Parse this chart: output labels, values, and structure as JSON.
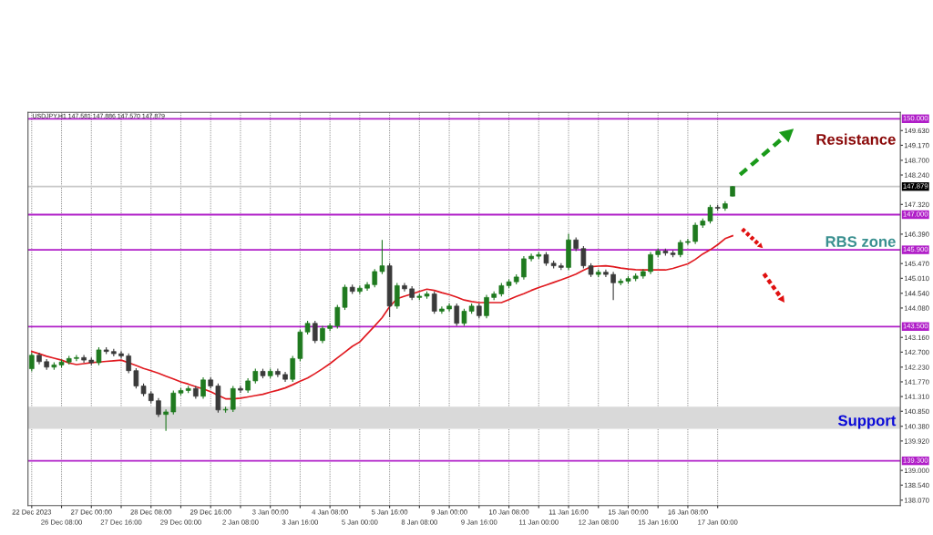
{
  "chart_data": {
    "type": "candlestick",
    "title": "USDJPY,H1 147.581 147.886 147.570 147.879",
    "categories": [
      "22 Dec 2023",
      null,
      null,
      null,
      "26 Dec 08:00",
      null,
      null,
      null,
      "27 Dec 00:00",
      null,
      null,
      null,
      "27 Dec 16:00",
      null,
      null,
      null,
      "28 Dec 08:00",
      null,
      null,
      null,
      "29 Dec 00:00",
      null,
      null,
      null,
      "29 Dec 16:00",
      null,
      null,
      null,
      "2 Jan 08:00",
      null,
      null,
      null,
      "3 Jan 00:00",
      null,
      null,
      null,
      "3 Jan 16:00",
      null,
      null,
      null,
      "4 Jan 08:00",
      null,
      null,
      null,
      "5 Jan 00:00",
      null,
      null,
      null,
      "5 Jan 16:00",
      null,
      null,
      null,
      "8 Jan 08:00",
      null,
      null,
      null,
      "9 Jan 00:00",
      null,
      null,
      null,
      "9 Jan 16:00",
      null,
      null,
      null,
      "10 Jan 08:00",
      null,
      null,
      null,
      "11 Jan 00:00",
      null,
      null,
      null,
      "11 Jan 16:00",
      null,
      null,
      null,
      "12 Jan 08:00",
      null,
      null,
      null,
      "15 Jan 00:00",
      null,
      null,
      null,
      "15 Jan 16:00",
      null,
      null,
      null,
      "16 Jan 08:00",
      null,
      null,
      null,
      "17 Jan 00:00",
      null,
      null,
      null,
      null,
      null,
      null,
      null,
      null,
      null,
      null,
      null,
      null,
      null,
      null,
      null,
      null,
      null,
      null,
      null,
      null,
      null,
      null,
      null,
      null
    ],
    "ohlc": [
      [
        142.18,
        142.68,
        142.1,
        142.6
      ],
      [
        142.6,
        142.68,
        142.32,
        142.4
      ],
      [
        142.4,
        142.48,
        142.15,
        142.23
      ],
      [
        142.23,
        142.38,
        142.15,
        142.3
      ],
      [
        142.3,
        142.47,
        142.22,
        142.39
      ],
      [
        142.39,
        142.58,
        142.31,
        142.5
      ],
      [
        142.5,
        142.61,
        142.42,
        142.53
      ],
      [
        142.53,
        142.61,
        142.37,
        142.45
      ],
      [
        142.45,
        142.53,
        142.29,
        142.37
      ],
      [
        142.37,
        142.85,
        142.29,
        142.77
      ],
      [
        142.77,
        142.85,
        142.64,
        142.72
      ],
      [
        142.72,
        142.8,
        142.57,
        142.65
      ],
      [
        142.65,
        142.73,
        142.5,
        142.58
      ],
      [
        142.58,
        142.66,
        142.04,
        142.12
      ],
      [
        142.12,
        142.2,
        141.56,
        141.64
      ],
      [
        141.64,
        141.72,
        141.32,
        141.4
      ],
      [
        141.4,
        141.48,
        141.1,
        141.18
      ],
      [
        141.18,
        141.26,
        140.67,
        140.75
      ],
      [
        140.75,
        140.91,
        140.24,
        140.83
      ],
      [
        140.83,
        141.5,
        140.75,
        141.42
      ],
      [
        141.42,
        141.58,
        141.34,
        141.5
      ],
      [
        141.5,
        141.64,
        141.42,
        141.56
      ],
      [
        141.56,
        141.64,
        141.24,
        141.32
      ],
      [
        141.32,
        141.91,
        141.24,
        141.83
      ],
      [
        141.83,
        141.91,
        141.56,
        141.64
      ],
      [
        141.64,
        141.72,
        140.81,
        140.89
      ],
      [
        140.89,
        140.99,
        140.81,
        140.91
      ],
      [
        140.91,
        141.64,
        140.83,
        141.56
      ],
      [
        141.56,
        141.64,
        141.43,
        141.51
      ],
      [
        141.51,
        141.88,
        141.43,
        141.8
      ],
      [
        141.8,
        142.18,
        141.72,
        142.1
      ],
      [
        142.1,
        142.18,
        141.88,
        141.96
      ],
      [
        141.96,
        142.18,
        141.88,
        142.1
      ],
      [
        142.1,
        142.18,
        141.92,
        142.0
      ],
      [
        142.0,
        142.08,
        141.77,
        141.85
      ],
      [
        141.85,
        142.58,
        141.77,
        142.5
      ],
      [
        142.5,
        143.41,
        142.42,
        143.33
      ],
      [
        143.33,
        143.68,
        143.25,
        143.6
      ],
      [
        143.6,
        143.68,
        142.98,
        143.06
      ],
      [
        143.06,
        143.52,
        142.98,
        143.44
      ],
      [
        143.44,
        143.6,
        143.36,
        143.52
      ],
      [
        143.52,
        144.18,
        143.44,
        144.1
      ],
      [
        144.1,
        144.81,
        144.02,
        144.73
      ],
      [
        144.73,
        144.81,
        144.52,
        144.6
      ],
      [
        144.6,
        144.78,
        144.52,
        144.7
      ],
      [
        144.7,
        144.89,
        144.62,
        144.81
      ],
      [
        144.81,
        145.3,
        144.73,
        145.22
      ],
      [
        145.22,
        146.21,
        145.14,
        145.4
      ],
      [
        145.4,
        145.48,
        143.79,
        144.14
      ],
      [
        144.14,
        144.86,
        144.06,
        144.78
      ],
      [
        144.78,
        144.86,
        144.6,
        144.68
      ],
      [
        144.68,
        144.76,
        144.33,
        144.41
      ],
      [
        144.41,
        144.53,
        144.33,
        144.45
      ],
      [
        144.45,
        144.6,
        144.37,
        144.52
      ],
      [
        144.52,
        144.6,
        143.9,
        143.98
      ],
      [
        143.98,
        144.13,
        143.9,
        144.05
      ],
      [
        144.05,
        144.22,
        143.97,
        144.14
      ],
      [
        144.14,
        144.22,
        143.52,
        143.6
      ],
      [
        143.6,
        144.06,
        143.52,
        143.98
      ],
      [
        143.98,
        144.22,
        143.9,
        144.14
      ],
      [
        144.14,
        144.22,
        143.76,
        143.84
      ],
      [
        143.84,
        144.49,
        143.76,
        144.41
      ],
      [
        144.41,
        144.6,
        144.33,
        144.52
      ],
      [
        144.52,
        144.86,
        144.44,
        144.78
      ],
      [
        144.78,
        144.98,
        144.7,
        144.9
      ],
      [
        144.9,
        145.13,
        144.82,
        145.05
      ],
      [
        145.05,
        145.7,
        144.97,
        145.62
      ],
      [
        145.62,
        145.78,
        145.54,
        145.7
      ],
      [
        145.7,
        145.83,
        145.62,
        145.75
      ],
      [
        145.75,
        145.83,
        145.4,
        145.48
      ],
      [
        145.48,
        145.56,
        145.32,
        145.4
      ],
      [
        145.4,
        145.48,
        145.27,
        145.35
      ],
      [
        145.35,
        146.4,
        145.27,
        146.21
      ],
      [
        146.21,
        146.29,
        145.86,
        145.94
      ],
      [
        145.94,
        146.02,
        145.32,
        145.4
      ],
      [
        145.4,
        145.48,
        145.05,
        145.13
      ],
      [
        145.13,
        145.28,
        145.05,
        145.2
      ],
      [
        145.2,
        145.28,
        145.05,
        145.13
      ],
      [
        145.13,
        145.21,
        144.33,
        144.87
      ],
      [
        144.87,
        145.0,
        144.79,
        144.92
      ],
      [
        144.92,
        145.08,
        144.84,
        145.0
      ],
      [
        145.0,
        145.16,
        144.92,
        145.08
      ],
      [
        145.08,
        145.3,
        145.0,
        145.22
      ],
      [
        145.22,
        145.83,
        145.14,
        145.75
      ],
      [
        145.75,
        145.94,
        145.67,
        145.86
      ],
      [
        145.86,
        145.94,
        145.72,
        145.8
      ],
      [
        145.8,
        145.88,
        145.67,
        145.75
      ],
      [
        145.75,
        146.21,
        145.67,
        146.13
      ],
      [
        146.13,
        146.24,
        146.05,
        146.16
      ],
      [
        146.16,
        146.75,
        146.08,
        146.67
      ],
      [
        146.67,
        146.88,
        146.59,
        146.8
      ],
      [
        146.8,
        147.31,
        146.72,
        147.23
      ],
      [
        147.23,
        147.31,
        147.12,
        147.2
      ],
      [
        147.2,
        147.42,
        147.12,
        147.34
      ],
      [
        147.58,
        147.89,
        147.57,
        147.88
      ],
      null,
      null,
      null,
      null,
      null,
      null,
      null,
      null,
      null,
      null,
      null,
      null,
      null,
      null,
      null,
      null,
      null,
      null,
      null,
      null,
      null,
      null
    ],
    "series": [
      {
        "type": "line",
        "color": "#e0191f",
        "values": [
          142.72,
          142.65,
          142.57,
          142.51,
          142.45,
          142.36,
          142.31,
          142.34,
          142.37,
          142.39,
          142.41,
          142.43,
          142.45,
          142.37,
          142.28,
          142.19,
          142.12,
          142.04,
          141.95,
          141.86,
          141.77,
          141.7,
          141.62,
          141.55,
          141.46,
          141.35,
          141.24,
          141.24,
          141.26,
          141.3,
          141.34,
          141.38,
          141.45,
          141.51,
          141.58,
          141.68,
          141.79,
          141.89,
          142.03,
          142.18,
          142.34,
          142.52,
          142.7,
          142.88,
          143.02,
          143.27,
          143.52,
          143.78,
          144.12,
          144.37,
          144.45,
          144.52,
          144.6,
          144.67,
          144.63,
          144.56,
          144.5,
          144.42,
          144.33,
          144.28,
          144.25,
          144.25,
          144.25,
          144.25,
          144.34,
          144.44,
          144.53,
          144.63,
          144.72,
          144.8,
          144.88,
          144.96,
          145.05,
          145.14,
          145.26,
          145.37,
          145.39,
          145.4,
          145.37,
          145.33,
          145.3,
          145.28,
          145.27,
          145.27,
          145.27,
          145.27,
          145.32,
          145.39,
          145.46,
          145.6,
          145.77,
          145.9,
          146.06,
          146.25,
          146.34,
          null,
          null,
          null,
          null,
          null,
          null,
          null,
          null,
          null,
          null,
          null,
          null,
          null,
          null,
          null,
          null,
          null,
          null,
          null,
          null,
          null,
          null
        ]
      }
    ],
    "ylim": [
      137.9,
      150.2
    ],
    "yticks": [
      {
        "value": 138.07,
        "label": "138.070"
      },
      {
        "value": 138.54,
        "label": "138.540"
      },
      {
        "value": 139.0,
        "label": "139.000"
      },
      {
        "value": 139.92,
        "label": "139.920"
      },
      {
        "value": 140.38,
        "label": "140.380"
      },
      {
        "value": 140.85,
        "label": "140.850"
      },
      {
        "value": 141.31,
        "label": "141.310"
      },
      {
        "value": 141.77,
        "label": "141.770"
      },
      {
        "value": 142.23,
        "label": "142.230"
      },
      {
        "value": 142.7,
        "label": "142.700"
      },
      {
        "value": 143.16,
        "label": "143.160"
      },
      {
        "value": 144.08,
        "label": "144.080"
      },
      {
        "value": 144.54,
        "label": "144.540"
      },
      {
        "value": 145.01,
        "label": "145.010"
      },
      {
        "value": 145.47,
        "label": "145.470"
      },
      {
        "value": 146.39,
        "label": "146.390"
      },
      {
        "value": 147.32,
        "label": "147.320"
      },
      {
        "value": 148.24,
        "label": "148.240"
      },
      {
        "value": 148.7,
        "label": "148.700"
      },
      {
        "value": 149.17,
        "label": "149.170"
      },
      {
        "value": 149.63,
        "label": "149.630"
      }
    ],
    "grid": "x",
    "ref_lines": [
      {
        "axis": "y",
        "value": 150.0,
        "label": "150.000",
        "color": "#b01ec8"
      },
      {
        "axis": "y",
        "value": 147.879,
        "label": "147.879",
        "color": "#c8c8c8"
      },
      {
        "axis": "y",
        "value": 147.0,
        "label": "147.000",
        "color": "#b01ec8"
      },
      {
        "axis": "y",
        "value": 145.9,
        "label": "145.900",
        "color": "#b01ec8"
      },
      {
        "axis": "y",
        "value": 143.5,
        "label": "143.500",
        "color": "#b01ec8"
      },
      {
        "axis": "y",
        "value": 139.3,
        "label": "139.300",
        "color": "#b01ec8"
      }
    ],
    "bands": [
      {
        "axis": "y",
        "from": 140.3,
        "to": 140.99,
        "color": "#d9d9d9"
      }
    ],
    "annotations": [
      "Resistance",
      "RBS zone",
      "Support"
    ]
  }
}
